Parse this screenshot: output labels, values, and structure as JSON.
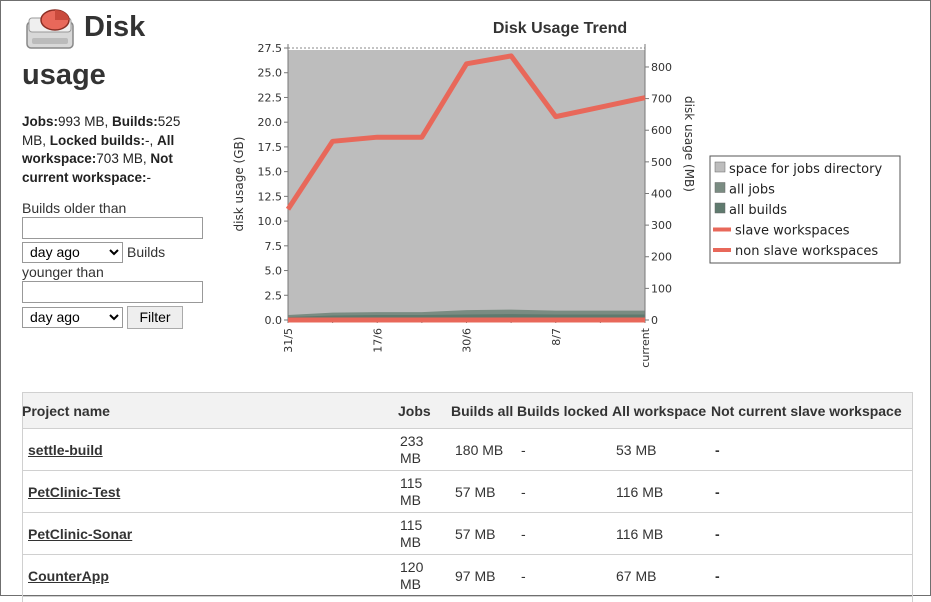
{
  "header": {
    "title_line1": "Disk",
    "title_line2": "usage",
    "icon": "disk-icon",
    "accent": "#e8685a"
  },
  "summary": {
    "jobs_label": "Jobs:",
    "jobs_value": "993 MB, ",
    "builds_label": "Builds:",
    "builds_value": "525 MB, ",
    "locked_label": "Locked builds:",
    "locked_value": "-, ",
    "all_ws_label": "All workspace:",
    "all_ws_value": "703 MB, ",
    "not_current_label": "Not current workspace:",
    "not_current_value": "-"
  },
  "filter": {
    "older_label": "Builds older than",
    "older_value": "",
    "older_unit": "day ago",
    "builds_label": "Builds",
    "younger_label": "younger than",
    "younger_value": "",
    "younger_unit": "day ago",
    "unit_options": [
      "day ago"
    ],
    "filter_button": "Filter"
  },
  "chart_data": {
    "type": "area",
    "title": "Disk Usage Trend",
    "ylabel": "disk usage (GB)",
    "y2label": "disk usage (MB)",
    "x": [
      "31/5",
      "",
      "17/6",
      "",
      "30/6",
      "",
      "8/7",
      "",
      "current"
    ],
    "x_ticks": [
      "31/5",
      "17/6",
      "30/6",
      "8/7",
      "current"
    ],
    "ylim": [
      0,
      27.5
    ],
    "yticks": [
      "0.0",
      "2.5",
      "5.0",
      "7.5",
      "10.0",
      "12.5",
      "15.0",
      "17.5",
      "20.0",
      "22.5",
      "25.0",
      "27.5"
    ],
    "y2lim": [
      0,
      860
    ],
    "y2ticks": [
      "0",
      "100",
      "200",
      "300",
      "400",
      "500",
      "600",
      "700",
      "800"
    ],
    "legend_position": "right",
    "series": [
      {
        "name": "space for jobs directory",
        "kind": "area",
        "axis": "left",
        "color": "#bdbdbd",
        "values": [
          27.3,
          27.3,
          27.3,
          27.3,
          27.3,
          27.3,
          27.3,
          27.3,
          27.3
        ]
      },
      {
        "name": "all jobs",
        "kind": "area",
        "axis": "left",
        "color": "#7a8c82",
        "values": [
          0.5,
          0.75,
          0.8,
          0.8,
          1.0,
          1.05,
          0.95,
          0.95,
          0.95
        ]
      },
      {
        "name": "all builds",
        "kind": "area",
        "axis": "left",
        "color": "#5f7a6e",
        "values": [
          0.3,
          0.45,
          0.5,
          0.5,
          0.55,
          0.6,
          0.55,
          0.55,
          0.55
        ]
      },
      {
        "name": "slave workspaces",
        "kind": "line",
        "axis": "right",
        "color": "#e8685a",
        "values": [
          0,
          0,
          0,
          0,
          0,
          0,
          0,
          0,
          0
        ]
      },
      {
        "name": "non slave workspaces",
        "kind": "line",
        "axis": "right",
        "color": "#e8685a",
        "values": [
          350,
          565,
          578,
          578,
          810,
          835,
          643,
          673,
          703
        ]
      }
    ]
  },
  "table": {
    "headers": [
      "Project name",
      "Jobs",
      "Builds all",
      "Builds locked",
      "All workspace",
      "Not current slave workspace"
    ],
    "rows": [
      {
        "name": "settle-build",
        "jobs_l1": "233",
        "jobs_l2": "MB",
        "builds_all": "180 MB",
        "builds_locked": "-",
        "all_ws": "53 MB",
        "not_current": "-"
      },
      {
        "name": "PetClinic-Test",
        "jobs_l1": "115",
        "jobs_l2": "MB",
        "builds_all": "57 MB",
        "builds_locked": "-",
        "all_ws": "116 MB",
        "not_current": "-"
      },
      {
        "name": "PetClinic-Sonar",
        "jobs_l1": "115",
        "jobs_l2": "MB",
        "builds_all": "57 MB",
        "builds_locked": "-",
        "all_ws": "116 MB",
        "not_current": "-"
      },
      {
        "name": "CounterApp",
        "jobs_l1": "120",
        "jobs_l2": "MB",
        "builds_all": "97 MB",
        "builds_locked": "-",
        "all_ws": "67 MB",
        "not_current": "-"
      }
    ]
  }
}
